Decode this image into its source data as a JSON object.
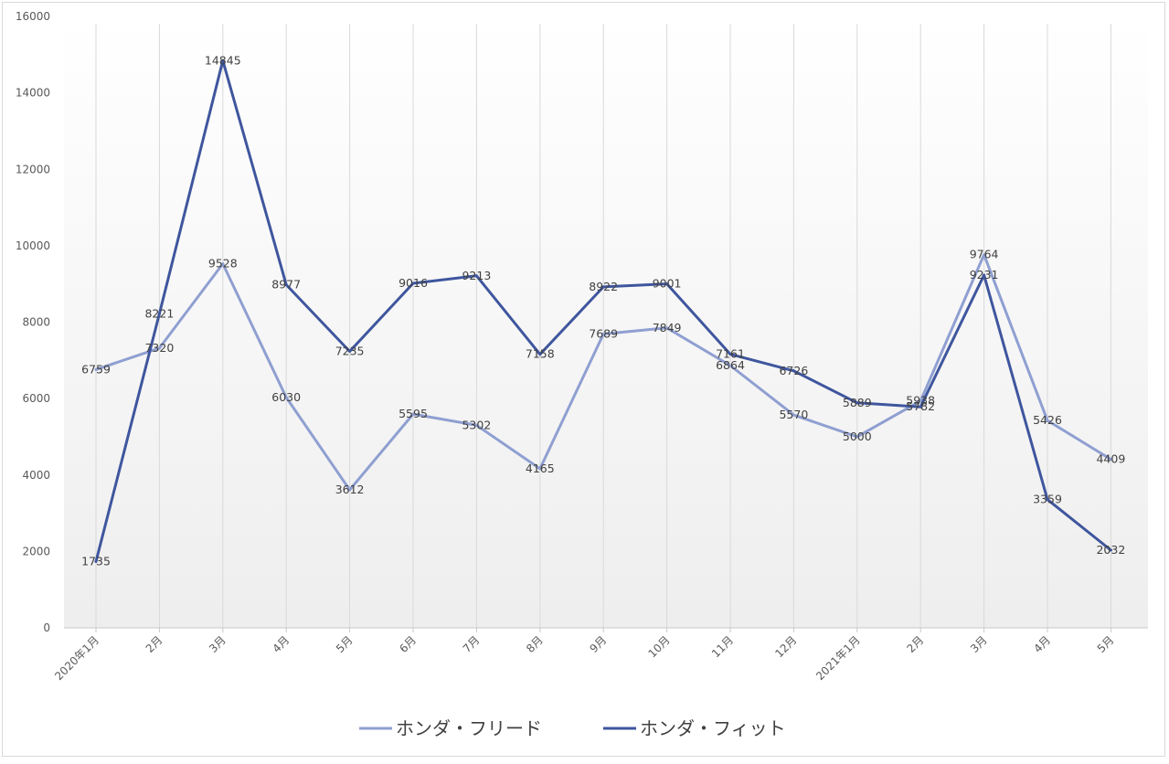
{
  "chart_data": {
    "type": "line",
    "title": "",
    "xlabel": "",
    "ylabel": "",
    "categories": [
      "2020年1月",
      "2月",
      "3月",
      "4月",
      "5月",
      "6月",
      "7月",
      "8月",
      "9月",
      "10月",
      "11月",
      "12月",
      "2021年1月",
      "2月",
      "3月",
      "4月",
      "5月"
    ],
    "ylim": [
      0,
      16000
    ],
    "yticks": [
      0,
      2000,
      4000,
      6000,
      8000,
      10000,
      12000,
      14000,
      16000
    ],
    "grid": "vertical",
    "legend_position": "bottom",
    "series": [
      {
        "name": "ホンダ・フリード",
        "color": "#8f9fd1",
        "values": [
          6759,
          7320,
          9528,
          6030,
          3612,
          5595,
          5302,
          4165,
          7689,
          7849,
          6864,
          5570,
          5000,
          5938,
          9764,
          5426,
          4409
        ]
      },
      {
        "name": "ホンダ・フィット",
        "color": "#3f569e",
        "values": [
          1735,
          8221,
          14845,
          8977,
          7235,
          9016,
          9213,
          7158,
          8922,
          9001,
          7161,
          6726,
          5889,
          5782,
          9231,
          3359,
          2032
        ]
      }
    ]
  }
}
